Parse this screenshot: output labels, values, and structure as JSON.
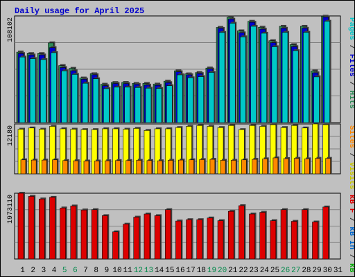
{
  "title": "Daily usage for April 2025",
  "days": [
    "1",
    "2",
    "3",
    "4",
    "5",
    "6",
    "7",
    "8",
    "9",
    "10",
    "11",
    "12",
    "13",
    "14",
    "15",
    "16",
    "17",
    "18",
    "19",
    "20",
    "21",
    "22",
    "23",
    "24",
    "25",
    "26",
    "27",
    "28",
    "29",
    "30",
    "31"
  ],
  "weekend_days": [
    5,
    6,
    12,
    13,
    19,
    20,
    26,
    27
  ],
  "panels": {
    "top": {
      "max_label": "108102",
      "axis_label_parts": [
        {
          "text": "Pages",
          "color": "#00c8c8"
        },
        {
          "text": " / ",
          "color": "#333333"
        },
        {
          "text": "Files",
          "color": "#0000cc"
        },
        {
          "text": " / ",
          "color": "#333333"
        },
        {
          "text": "Hits",
          "color": "#2e8b57"
        }
      ]
    },
    "middle": {
      "max_label": "12180",
      "axis_label_parts": [
        {
          "text": "Sites",
          "color": "#ff8800"
        },
        {
          "text": " / ",
          "color": "#333333"
        },
        {
          "text": "Visits",
          "color": "#c8c800"
        }
      ]
    },
    "bottom": {
      "max_label": "1973110",
      "axis_label_parts": [
        {
          "text": "kB F",
          "color": "#dd0000"
        },
        {
          "text": " / ",
          "color": "#333333"
        },
        {
          "text": "kB In",
          "color": "#0066cc"
        },
        {
          "text": " / ",
          "color": "#333333"
        },
        {
          "text": "kB Out",
          "color": "#00aa00"
        }
      ]
    }
  },
  "chart_data": {
    "type": "bar",
    "categories": [
      "1",
      "2",
      "3",
      "4",
      "5",
      "6",
      "7",
      "8",
      "9",
      "10",
      "11",
      "12",
      "13",
      "14",
      "15",
      "16",
      "17",
      "18",
      "19",
      "20",
      "21",
      "22",
      "23",
      "24",
      "25",
      "26",
      "27",
      "28",
      "29",
      "30",
      "31"
    ],
    "series": [
      {
        "name": "Hits",
        "color": "#2e8b57",
        "panel": "top",
        "values": [
          71500,
          70000,
          70000,
          80800,
          57800,
          55000,
          45200,
          49500,
          38900,
          40600,
          40700,
          39700,
          39700,
          39000,
          42000,
          52500,
          49400,
          50700,
          55300,
          96500,
          106800,
          93000,
          102700,
          96700,
          83000,
          97600,
          79000,
          97600,
          52400,
          107800,
          null
        ]
      },
      {
        "name": "Files",
        "color": "#0000cc",
        "panel": "top",
        "values": [
          70000,
          68500,
          68500,
          76000,
          55800,
          52500,
          44000,
          48500,
          37400,
          39600,
          39500,
          38700,
          38000,
          37800,
          40500,
          51500,
          48400,
          49700,
          54300,
          95500,
          104800,
          91000,
          101700,
          94700,
          81000,
          95600,
          77000,
          95600,
          50400,
          106800,
          null
        ]
      },
      {
        "name": "Pages",
        "color": "#00c8c8",
        "panel": "top",
        "values": [
          68500,
          67000,
          66000,
          73000,
          54500,
          51000,
          42000,
          46500,
          36500,
          38000,
          38000,
          37700,
          37000,
          36700,
          39500,
          50500,
          47500,
          48700,
          53000,
          93500,
          102800,
          89000,
          99700,
          92700,
          79000,
          93600,
          75000,
          93600,
          48500,
          104800,
          null
        ]
      },
      {
        "name": "Visits",
        "color": "#ffff00",
        "panel": "middle",
        "values": [
          10900,
          11200,
          10900,
          11600,
          11000,
          10900,
          10800,
          10800,
          11000,
          11000,
          10900,
          11100,
          10600,
          11000,
          11000,
          11300,
          11600,
          11800,
          11600,
          11300,
          11800,
          10800,
          11800,
          11600,
          12000,
          11300,
          11800,
          11200,
          12180,
          12000,
          null
        ]
      },
      {
        "name": "Sites",
        "color": "#ff8800",
        "panel": "middle",
        "values": [
          2900,
          2850,
          2850,
          2900,
          2750,
          2700,
          2650,
          2650,
          2700,
          2750,
          2750,
          2800,
          2750,
          2700,
          2800,
          2850,
          2900,
          2950,
          3000,
          2800,
          2800,
          2900,
          3000,
          3100,
          3300,
          3150,
          3200,
          3100,
          3200,
          3200,
          null
        ]
      },
      {
        "name": "kB F",
        "color": "#dd0000",
        "panel": "bottom",
        "values": [
          1973110,
          1880000,
          1800000,
          1850000,
          1530000,
          1590000,
          1470000,
          1480000,
          1300000,
          815000,
          1045000,
          1255000,
          1350000,
          1300000,
          1480000,
          1140000,
          1180000,
          1180000,
          1230000,
          1150000,
          1430000,
          1600000,
          1350000,
          1400000,
          1150000,
          1480000,
          1130000,
          1480000,
          1110000,
          1560000,
          null
        ]
      }
    ]
  }
}
